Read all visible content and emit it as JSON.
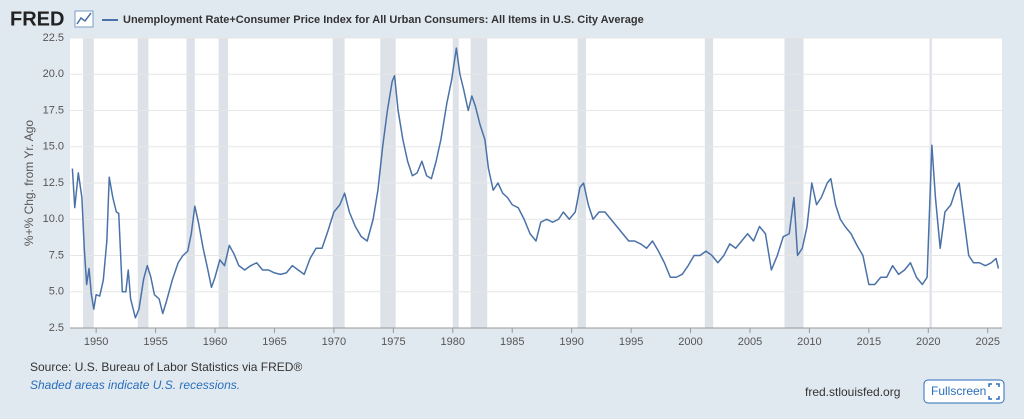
{
  "chart_data": {
    "type": "line",
    "logo": "FRED",
    "title": "Unemployment Rate+Consumer Price Index for All Urban Consumers: All Items in U.S. City Average",
    "ylabel": "%+% Chg. from Yr. Ago",
    "source": "Source: U.S. Bureau of Labor Statistics via FRED®",
    "note": "Shaded areas indicate U.S. recessions.",
    "site": "fred.stlouisfed.org",
    "button": "Fullscreen",
    "xlim": [
      1947.8,
      2026.2
    ],
    "xticks": [
      1950,
      1955,
      1960,
      1965,
      1970,
      1975,
      1980,
      1985,
      1990,
      1995,
      2000,
      2005,
      2010,
      2015,
      2020,
      2025
    ],
    "ylim": [
      2.5,
      22.5
    ],
    "yticks": [
      2.5,
      {
        "value": 5,
        "label": "5.0"
      },
      7.5,
      {
        "value": 10,
        "label": "10.0"
      },
      12.5,
      {
        "value": 15,
        "label": "15.0"
      },
      17.5,
      {
        "value": 20,
        "label": "20.0"
      },
      22.5
    ],
    "grid": true,
    "recession_color": "#dde2e8",
    "recessions": [
      [
        1948.9,
        1949.8
      ],
      [
        1953.5,
        1954.4
      ],
      [
        1957.6,
        1958.3
      ],
      [
        1960.3,
        1961.1
      ],
      [
        1969.9,
        1970.9
      ],
      [
        1973.9,
        1975.2
      ],
      [
        1980.0,
        1980.5
      ],
      [
        1981.5,
        1982.9
      ],
      [
        1990.5,
        1991.2
      ],
      [
        2001.2,
        2001.9
      ],
      [
        2007.9,
        2009.5
      ],
      [
        2020.1,
        2020.3
      ]
    ],
    "x": [
      1948.0,
      1948.2,
      1948.5,
      1948.8,
      1949.0,
      1949.2,
      1949.4,
      1949.6,
      1949.8,
      1950.0,
      1950.3,
      1950.6,
      1950.9,
      1951.1,
      1951.4,
      1951.7,
      1951.9,
      1952.2,
      1952.5,
      1952.7,
      1952.9,
      1953.3,
      1953.6,
      1954.0,
      1954.3,
      1954.6,
      1954.9,
      1955.3,
      1955.6,
      1955.9,
      1956.4,
      1956.9,
      1957.3,
      1957.7,
      1958.0,
      1958.3,
      1958.6,
      1959.0,
      1959.4,
      1959.7,
      1960.0,
      1960.4,
      1960.8,
      1961.2,
      1961.6,
      1962.0,
      1962.5,
      1963.0,
      1963.5,
      1964.0,
      1964.5,
      1965.0,
      1965.5,
      1966.0,
      1966.5,
      1967.0,
      1967.5,
      1968.0,
      1968.5,
      1969.0,
      1969.5,
      1970.0,
      1970.5,
      1970.9,
      1971.3,
      1971.8,
      1972.3,
      1972.8,
      1973.3,
      1973.7,
      1974.1,
      1974.5,
      1974.9,
      1975.1,
      1975.4,
      1975.8,
      1976.2,
      1976.6,
      1977.0,
      1977.4,
      1977.8,
      1978.2,
      1978.6,
      1979.0,
      1979.5,
      1979.9,
      1980.3,
      1980.6,
      1980.9,
      1981.3,
      1981.6,
      1981.9,
      1982.3,
      1982.7,
      1983.0,
      1983.4,
      1983.8,
      1984.2,
      1984.6,
      1985.0,
      1985.5,
      1986.0,
      1986.5,
      1987.0,
      1987.4,
      1987.9,
      1988.4,
      1988.9,
      1989.3,
      1989.8,
      1990.3,
      1990.7,
      1991.0,
      1991.4,
      1991.8,
      1992.3,
      1992.8,
      1993.3,
      1993.8,
      1994.3,
      1994.8,
      1995.3,
      1995.8,
      1996.3,
      1996.8,
      1997.3,
      1997.8,
      1998.3,
      1998.8,
      1999.3,
      1999.8,
      2000.3,
      2000.8,
      2001.3,
      2001.8,
      2002.3,
      2002.8,
      2003.3,
      2003.8,
      2004.3,
      2004.8,
      2005.3,
      2005.8,
      2006.3,
      2006.8,
      2007.3,
      2007.8,
      2008.3,
      2008.7,
      2009.0,
      2009.4,
      2009.8,
      2010.2,
      2010.6,
      2011.0,
      2011.5,
      2011.8,
      2012.2,
      2012.6,
      2013.0,
      2013.5,
      2014.0,
      2014.5,
      2015.0,
      2015.5,
      2016.0,
      2016.5,
      2017.0,
      2017.5,
      2018.0,
      2018.5,
      2019.0,
      2019.5,
      2019.9,
      2020.3,
      2020.6,
      2021.0,
      2021.4,
      2021.9,
      2022.3,
      2022.6,
      2023.0,
      2023.4,
      2023.8,
      2024.3,
      2024.8,
      2025.3,
      2025.7,
      2025.9
    ],
    "series": [
      {
        "name": "Unemployment Rate+Consumer Price Index for All Urban Consumers: All Items in U.S. City Average",
        "color": "#4b72a8",
        "values": [
          13.5,
          10.8,
          13.2,
          11.5,
          8,
          5.5,
          6.6,
          4.8,
          3.8,
          4.8,
          4.7,
          5.8,
          8.5,
          12.9,
          11.5,
          10.5,
          10.4,
          5.0,
          5.0,
          6.5,
          4.5,
          3.2,
          3.8,
          5.9,
          6.8,
          6.0,
          4.8,
          4.5,
          3.5,
          4.3,
          5.8,
          7.0,
          7.5,
          7.8,
          9.0,
          10.9,
          9.8,
          8.0,
          6.5,
          5.3,
          6.0,
          7.2,
          6.8,
          8.2,
          7.6,
          6.8,
          6.5,
          6.8,
          7.0,
          6.5,
          6.5,
          6.3,
          6.2,
          6.3,
          6.8,
          6.5,
          6.2,
          7.3,
          8.0,
          8.0,
          9.2,
          10.5,
          11.0,
          11.8,
          10.5,
          9.5,
          8.8,
          8.5,
          10.0,
          12.0,
          15.0,
          17.5,
          19.5,
          19.9,
          17.5,
          15.5,
          14.0,
          13.0,
          13.2,
          14.0,
          13.0,
          12.8,
          14.0,
          15.5,
          18.0,
          19.6,
          21.8,
          20.0,
          19.0,
          17.5,
          18.5,
          17.8,
          16.5,
          15.5,
          13.5,
          12.0,
          12.5,
          11.8,
          11.5,
          11.0,
          10.8,
          10.0,
          9.0,
          8.5,
          9.8,
          10.0,
          9.8,
          10.0,
          10.5,
          10.0,
          10.5,
          12.2,
          12.5,
          11.0,
          10.0,
          10.5,
          10.5,
          10.0,
          9.5,
          9.0,
          8.5,
          8.5,
          8.3,
          8.0,
          8.5,
          7.8,
          7.0,
          6.0,
          6.0,
          6.2,
          6.8,
          7.5,
          7.5,
          7.8,
          7.5,
          7.0,
          7.5,
          8.3,
          8.0,
          8.5,
          9.0,
          8.5,
          9.5,
          9.0,
          6.5,
          7.5,
          8.8,
          9.0,
          11.5,
          7.5,
          8.0,
          9.5,
          12.5,
          11.0,
          11.5,
          12.5,
          12.8,
          11.0,
          10.0,
          9.5,
          9.0,
          8.2,
          7.5,
          5.5,
          5.5,
          6.0,
          6.0,
          6.8,
          6.2,
          6.5,
          7.0,
          6.0,
          5.5,
          6.0,
          15.1,
          11.5,
          8.0,
          10.5,
          11.0,
          12.0,
          12.5,
          10.0,
          7.5,
          7.0,
          7.0,
          6.8,
          7.0,
          7.3,
          6.6
        ]
      }
    ]
  }
}
